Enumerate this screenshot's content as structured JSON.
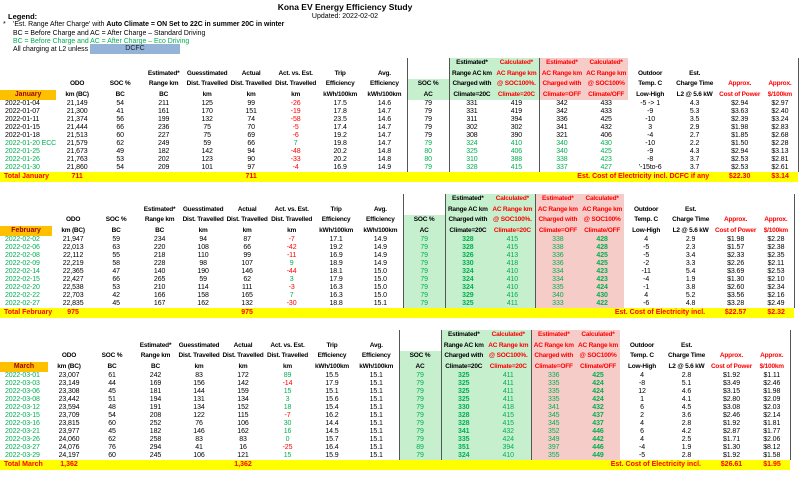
{
  "title": "Kona EV Energy Efficiency Study",
  "updated": "Updated: 2022-02-02",
  "legend": {
    "label": "Legend:",
    "asterisk": "*",
    "line1_normal": "'Est. Range After Charge' with ",
    "line1_bold": "Auto Climate = ON Set to 22C in summer 20C in winter",
    "line2": "BC = Before Charge and AC = After Charge – Standard Driving",
    "line3": "BC = Before Charge and AC = After Charge – Eco Driving",
    "line4": "All charging at L2 unless",
    "dcfc_label": "DCFC"
  },
  "colors": {
    "green_text": "#00B050",
    "red_text": "#FF0000",
    "month_bg": "#FFC000",
    "month_text": "#9C0006",
    "total_bg": "#FFFF00",
    "green_bg": "#C6EFCE",
    "pink_bg": "#F6CCC9",
    "dcfc_bg": "#95B3D7"
  },
  "columns": [
    [
      "",
      "",
      "",
      ""
    ],
    [
      "",
      "",
      "ODO",
      "km (BC)"
    ],
    [
      "",
      "",
      "SOC %",
      "BC"
    ],
    [
      "",
      "Estimated*",
      "Range km",
      "BC"
    ],
    [
      "",
      "Guesstimated",
      "Dist. Travelled",
      "km"
    ],
    [
      "",
      "Actual",
      "Dist. Travelled",
      "km"
    ],
    [
      "",
      "Act. vs. Est.",
      "Dist. Travelled",
      "km"
    ],
    [
      "",
      "Trip",
      "Efficiency",
      "kWh/100km"
    ],
    [
      "",
      "Avg.",
      "Efficiency",
      "kWh/100km"
    ],
    [
      "",
      "",
      "SOC %",
      "AC"
    ],
    [
      "Estimated*",
      "Range AC km",
      "Charged with",
      "Climate=20C"
    ],
    [
      "Calculated*",
      "AC Range km",
      "@ SOC100%.",
      "Climate=20C"
    ],
    [
      "Estimated*",
      "AC Range km",
      "Charged with",
      "Climate=OFF"
    ],
    [
      "Calculated*",
      "AC Range km",
      "@ SOC100%",
      "Climate/OFF"
    ],
    [
      "",
      "Outdoor",
      "Temp. C",
      "Low-High"
    ],
    [
      "",
      "Est.",
      "Charge Time",
      "L2 @ 5.6 kW"
    ],
    [
      "",
      "",
      "Approx.",
      "Cost of Power"
    ],
    [
      "",
      "",
      "Approx.",
      "$/100km"
    ]
  ],
  "months": [
    {
      "name": "January",
      "shaded": false,
      "rows": [
        {
          "eco": false,
          "v": [
            "2022-01-04",
            "21,149",
            "54",
            "211",
            "125",
            "99",
            "-26",
            "17.5",
            "14.6",
            "79",
            "331",
            "419",
            "342",
            "433",
            "-5 -> 1",
            "4.3",
            "$2.94",
            "$2.97"
          ]
        },
        {
          "eco": false,
          "v": [
            "2022-01-07",
            "21,300",
            "41",
            "161",
            "170",
            "151",
            "-19",
            "17.8",
            "14.7",
            "79",
            "331",
            "419",
            "342",
            "433",
            "-9",
            "5.3",
            "$3.63",
            "$2.40"
          ]
        },
        {
          "eco": false,
          "v": [
            "2022-01-11",
            "21,374",
            "56",
            "199",
            "132",
            "74",
            "-58",
            "23.5",
            "14.6",
            "79",
            "311",
            "394",
            "336",
            "425",
            "-10",
            "3.5",
            "$2.39",
            "$3.24"
          ]
        },
        {
          "eco": false,
          "v": [
            "2022-01-15",
            "21,444",
            "66",
            "236",
            "75",
            "70",
            "-5",
            "17.4",
            "14.7",
            "79",
            "302",
            "302",
            "341",
            "432",
            "3",
            "2.9",
            "$1.98",
            "$2.83"
          ]
        },
        {
          "eco": false,
          "v": [
            "2022-01-18",
            "21,513",
            "60",
            "227",
            "75",
            "69",
            "-6",
            "19.2",
            "14.7",
            "79",
            "308",
            "390",
            "321",
            "406",
            "-4",
            "2.7",
            "$1.85",
            "$2.68"
          ]
        },
        {
          "eco": true,
          "v": [
            "2022-01-20 ECC",
            "21,579",
            "62",
            "249",
            "59",
            "66",
            "7",
            "19.8",
            "14.7",
            "79",
            "324",
            "410",
            "340",
            "430",
            "-10",
            "2.2",
            "$1.50",
            "$2.28"
          ]
        },
        {
          "eco": true,
          "v": [
            "2022-01-25",
            "21,673",
            "49",
            "182",
            "142",
            "94",
            "-48",
            "20.2",
            "14.8",
            "80",
            "325",
            "406",
            "340",
            "425",
            "-9",
            "4.3",
            "$2.94",
            "$3.13"
          ]
        },
        {
          "eco": true,
          "v": [
            "2022-01-26",
            "21,763",
            "53",
            "202",
            "123",
            "90",
            "-33",
            "20.2",
            "14.8",
            "80",
            "310",
            "388",
            "338",
            "423",
            "-8",
            "3.7",
            "$2.53",
            "$2.81"
          ]
        },
        {
          "eco": true,
          "v": [
            "2022-01-30",
            "21,860",
            "54",
            "209",
            "101",
            "97",
            "-4",
            "16.9",
            "14.9",
            "79",
            "328",
            "415",
            "337",
            "427",
            "'-15to-6",
            "3.7",
            "$2.53",
            "$2.61"
          ]
        }
      ],
      "total": {
        "label": "Total January",
        "dist1": "711",
        "dist2": "711",
        "cost_label": "Est. Cost of Electricity incl. DCFC if any",
        "cost": "$22.30",
        "per": "$3.14"
      }
    },
    {
      "name": "February",
      "shaded": true,
      "rows": [
        {
          "eco": true,
          "v": [
            "2022-02-02",
            "21,947",
            "59",
            "234",
            "94",
            "87",
            "-7",
            "17.1",
            "14.9",
            "79",
            "328",
            "415",
            "338",
            "428",
            "4",
            "2.9",
            "$1.98",
            "$2.28"
          ]
        },
        {
          "eco": true,
          "v": [
            "2022-02-06",
            "22,013",
            "63",
            "220",
            "108",
            "66",
            "-42",
            "19.2",
            "14.9",
            "79",
            "328",
            "415",
            "338",
            "428",
            "-5",
            "2.3",
            "$1.57",
            "$2.38"
          ]
        },
        {
          "eco": true,
          "v": [
            "2022-02-08",
            "22,112",
            "55",
            "218",
            "110",
            "99",
            "-11",
            "16.9",
            "14.9",
            "79",
            "326",
            "413",
            "336",
            "425",
            "-5",
            "3.4",
            "$2.33",
            "$2.35"
          ]
        },
        {
          "eco": true,
          "v": [
            "2022-02-09",
            "22,219",
            "58",
            "228",
            "98",
            "107",
            "9",
            "18.9",
            "14.9",
            "79",
            "330",
            "418",
            "336",
            "425",
            "-2",
            "3.3",
            "$2.26",
            "$2.11"
          ]
        },
        {
          "eco": true,
          "v": [
            "2022-02-14",
            "22,365",
            "47",
            "140",
            "190",
            "146",
            "-44",
            "18.1",
            "15.0",
            "79",
            "324",
            "410",
            "334",
            "423",
            "-11",
            "5.4",
            "$3.69",
            "$2.53"
          ]
        },
        {
          "eco": true,
          "v": [
            "2022-02-15",
            "22,427",
            "66",
            "265",
            "59",
            "62",
            "3",
            "17.9",
            "15.0",
            "79",
            "324",
            "410",
            "334",
            "423",
            "-4",
            "1.9",
            "$1.30",
            "$2.10"
          ]
        },
        {
          "eco": true,
          "v": [
            "2022-02-20",
            "22,538",
            "53",
            "210",
            "114",
            "111",
            "-3",
            "16.3",
            "15.0",
            "79",
            "324",
            "410",
            "335",
            "424",
            "-1",
            "3.8",
            "$2.60",
            "$2.34"
          ]
        },
        {
          "eco": true,
          "v": [
            "2022-02-22",
            "22,703",
            "42",
            "166",
            "158",
            "165",
            "7",
            "16.3",
            "15.0",
            "79",
            "329",
            "416",
            "340",
            "430",
            "4",
            "5.2",
            "$3.56",
            "$2.16"
          ]
        },
        {
          "eco": true,
          "v": [
            "2022-02-27",
            "22,835",
            "45",
            "167",
            "162",
            "132",
            "-30",
            "18.8",
            "15.1",
            "79",
            "325",
            "411",
            "333",
            "422",
            "-6",
            "4.8",
            "$3.28",
            "$2.49"
          ]
        }
      ],
      "total": {
        "label": "Total February",
        "dist1": "975",
        "dist2": "975",
        "cost_label": "Est. Cost of Electricity incl.",
        "cost": "$22.57",
        "per": "$2.32"
      }
    },
    {
      "name": "March",
      "shaded": true,
      "rows": [
        {
          "eco": true,
          "v": [
            "2022-03-01",
            "23,007",
            "61",
            "242",
            "83",
            "172",
            "89",
            "15.5",
            "15.1",
            "79",
            "325",
            "411",
            "336",
            "425",
            "4",
            "2.8",
            "$1.92",
            "$1.11"
          ]
        },
        {
          "eco": true,
          "v": [
            "2022-03-03",
            "23,149",
            "44",
            "169",
            "156",
            "142",
            "-14",
            "17.9",
            "15.1",
            "79",
            "325",
            "411",
            "335",
            "424",
            "-8",
            "5.1",
            "$3.49",
            "$2.46"
          ]
        },
        {
          "eco": true,
          "v": [
            "2022-03-06",
            "23,308",
            "45",
            "181",
            "144",
            "159",
            "15",
            "15.1",
            "15.1",
            "79",
            "325",
            "411",
            "335",
            "424",
            "12",
            "4.6",
            "$3.15",
            "$1.98"
          ]
        },
        {
          "eco": true,
          "v": [
            "2022-03-08",
            "23,442",
            "51",
            "194",
            "131",
            "134",
            "3",
            "15.6",
            "15.1",
            "79",
            "325",
            "411",
            "335",
            "424",
            "1",
            "4.1",
            "$2.80",
            "$2.09"
          ]
        },
        {
          "eco": true,
          "v": [
            "2022-03-12",
            "23,594",
            "48",
            "191",
            "134",
            "152",
            "18",
            "15.4",
            "15.1",
            "79",
            "330",
            "418",
            "341",
            "432",
            "6",
            "4.5",
            "$3.08",
            "$2.03"
          ]
        },
        {
          "eco": true,
          "v": [
            "2022-03-15",
            "23,709",
            "54",
            "208",
            "122",
            "115",
            "-7",
            "16.2",
            "15.1",
            "79",
            "328",
            "415",
            "345",
            "437",
            "2",
            "3.6",
            "$2.46",
            "$2.14"
          ]
        },
        {
          "eco": true,
          "v": [
            "2022-03-16",
            "23,815",
            "60",
            "252",
            "76",
            "106",
            "30",
            "14.4",
            "15.1",
            "79",
            "328",
            "415",
            "345",
            "437",
            "4",
            "2.8",
            "$1.92",
            "$1.81"
          ]
        },
        {
          "eco": true,
          "v": [
            "2022-03-21",
            "23,977",
            "45",
            "182",
            "146",
            "162",
            "16",
            "14.5",
            "15.1",
            "79",
            "341",
            "432",
            "352",
            "446",
            "6",
            "4.2",
            "$2.87",
            "$1.77"
          ]
        },
        {
          "eco": true,
          "v": [
            "2022-03-26",
            "24,060",
            "62",
            "258",
            "83",
            "83",
            "0",
            "15.7",
            "15.1",
            "79",
            "335",
            "424",
            "349",
            "442",
            "4",
            "2.5",
            "$1.71",
            "$2.06"
          ]
        },
        {
          "eco": true,
          "v": [
            "2022-03-27",
            "24,076",
            "76",
            "294",
            "41",
            "16",
            "-25",
            "16.4",
            "15.1",
            "89",
            "351",
            "394",
            "397",
            "446",
            "-4",
            "1.9",
            "$1.30",
            "$8.12"
          ]
        },
        {
          "eco": true,
          "v": [
            "2022-03-29",
            "24,197",
            "60",
            "245",
            "106",
            "121",
            "15",
            "15.9",
            "15.1",
            "79",
            "324",
            "410",
            "355",
            "449",
            "-5",
            "2.8",
            "$1.92",
            "$1.58"
          ]
        }
      ],
      "total": {
        "label": "Total March",
        "dist1": "1,362",
        "dist2": "1,362",
        "cost_label": "Est. Cost of Electricity incl.",
        "cost": "$26.61",
        "per": "$1.95"
      }
    }
  ]
}
